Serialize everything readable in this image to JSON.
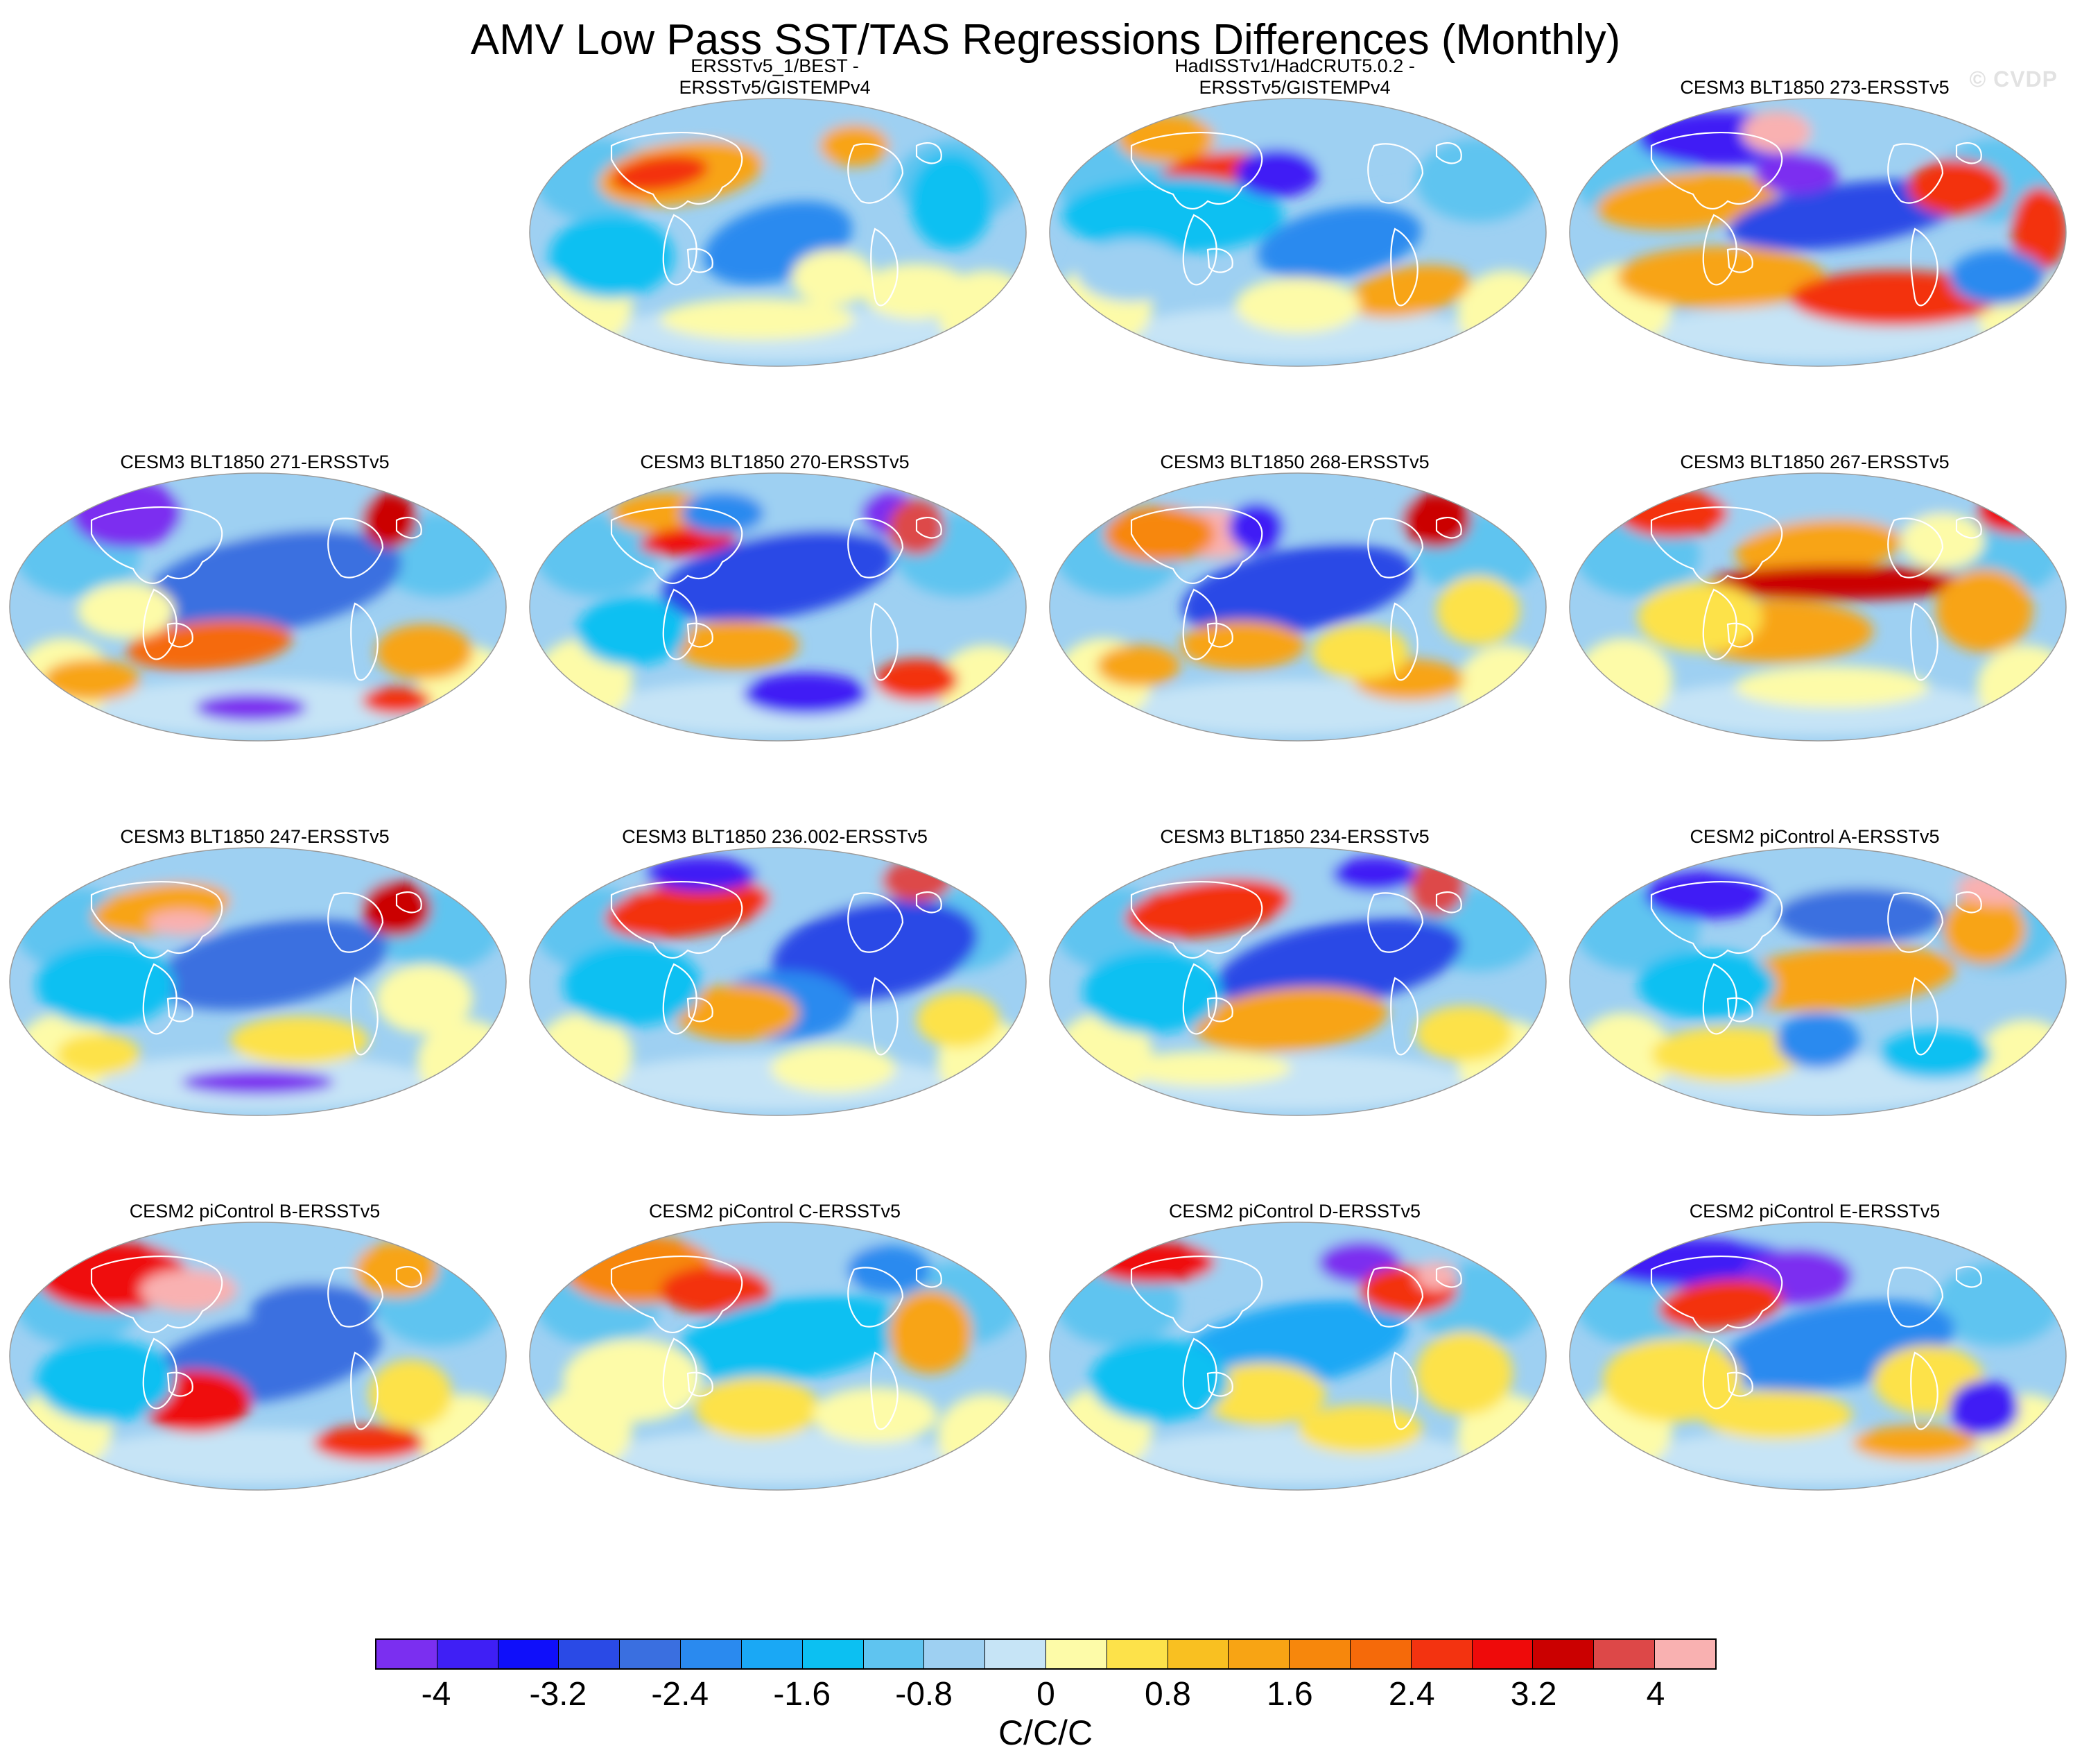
{
  "title": "AMV Low Pass SST/TAS Regressions Differences (Monthly)",
  "watermark": "© CVDP",
  "panels": [
    {
      "title": [
        "ERSSTv5_1/BEST -",
        "ERSSTv5/GISTEMPv4"
      ],
      "pattern": "obs-best"
    },
    {
      "title": [
        "HadISSTv1/HadCRUT5.0.2 -",
        "ERSSTv5/GISTEMPv4"
      ],
      "pattern": "obs-had"
    },
    {
      "title": [
        "CESM3 BLT1850 273-ERSSTv5"
      ],
      "pattern": "cesm3-273"
    },
    {
      "title": [
        "CESM3 BLT1850 271-ERSSTv5"
      ],
      "pattern": "cesm3-271"
    },
    {
      "title": [
        "CESM3 BLT1850 270-ERSSTv5"
      ],
      "pattern": "cesm3-270"
    },
    {
      "title": [
        "CESM3 BLT1850 268-ERSSTv5"
      ],
      "pattern": "cesm3-268"
    },
    {
      "title": [
        "CESM3 BLT1850 267-ERSSTv5"
      ],
      "pattern": "cesm3-267"
    },
    {
      "title": [
        "CESM3 BLT1850 247-ERSSTv5"
      ],
      "pattern": "cesm3-247"
    },
    {
      "title": [
        "CESM3 BLT1850 236.002-ERSSTv5"
      ],
      "pattern": "cesm3-236"
    },
    {
      "title": [
        "CESM3 BLT1850 234-ERSSTv5"
      ],
      "pattern": "cesm3-234"
    },
    {
      "title": [
        "CESM2 piControl A-ERSSTv5"
      ],
      "pattern": "cesm2-a"
    },
    {
      "title": [
        "CESM2 piControl B-ERSSTv5"
      ],
      "pattern": "cesm2-b"
    },
    {
      "title": [
        "CESM2 piControl C-ERSSTv5"
      ],
      "pattern": "cesm2-c"
    },
    {
      "title": [
        "CESM2 piControl D-ERSSTv5"
      ],
      "pattern": "cesm2-d"
    },
    {
      "title": [
        "CESM2 piControl E-ERSSTv5"
      ],
      "pattern": "cesm2-e"
    }
  ],
  "colorbar": {
    "units": "C/C/C",
    "colors": [
      "#7b2ff0",
      "#3f1ff5",
      "#0f0ffa",
      "#2a4ae6",
      "#3a6fe0",
      "#2a8aef",
      "#1aa8f5",
      "#0cc0f2",
      "#5fc4f0",
      "#9ed0f2",
      "#c6e4f6",
      "#fdfba8",
      "#fde24a",
      "#f9c021",
      "#f8a414",
      "#f7870c",
      "#f56a0a",
      "#f33310",
      "#ef0a0a",
      "#cb0000",
      "#dd4848",
      "#f9b1b1"
    ],
    "labels": [
      "-4",
      "-3.2",
      "-2.4",
      "-1.6",
      "-0.8",
      "0",
      "0.8",
      "1.6",
      "2.4",
      "3.2",
      "4"
    ]
  }
}
